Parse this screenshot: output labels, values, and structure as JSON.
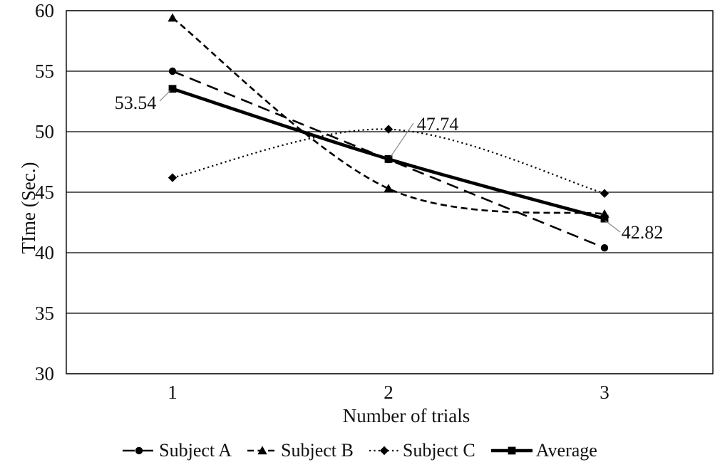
{
  "chart_data": {
    "type": "line",
    "title": "",
    "xlabel": "Number of trials",
    "ylabel": "TIme (Sec.)",
    "categories": [
      "1",
      "2",
      "3"
    ],
    "yticks": [
      60,
      55,
      50,
      45,
      40,
      35,
      30
    ],
    "ylim": [
      30,
      60
    ],
    "ytick_step": 5,
    "grid": "horizontal-gridlines-on",
    "legend_position": "bottom",
    "series": [
      {
        "name": "Subject A",
        "marker": "circle",
        "line_style": "long-dash",
        "values": [
          55.0,
          47.7,
          40.4
        ]
      },
      {
        "name": "Subject B",
        "marker": "triangle",
        "line_style": "dash",
        "values": [
          59.4,
          45.3,
          43.2
        ]
      },
      {
        "name": "Subject C",
        "marker": "diamond",
        "line_style": "dot",
        "values": [
          46.2,
          50.2,
          44.9
        ]
      },
      {
        "name": "Average",
        "marker": "square",
        "line_style": "solid",
        "values": [
          53.54,
          47.74,
          42.82
        ]
      }
    ],
    "data_labels": [
      {
        "text": "53.54",
        "series": "Average",
        "index": 0
      },
      {
        "text": "47.74",
        "series": "Average",
        "index": 1
      },
      {
        "text": "42.82",
        "series": "Average",
        "index": 2
      }
    ],
    "colors": {
      "foreground": "#000000",
      "text": "#111111",
      "background": "#ffffff",
      "callout_line": "#8a8a8a"
    }
  }
}
